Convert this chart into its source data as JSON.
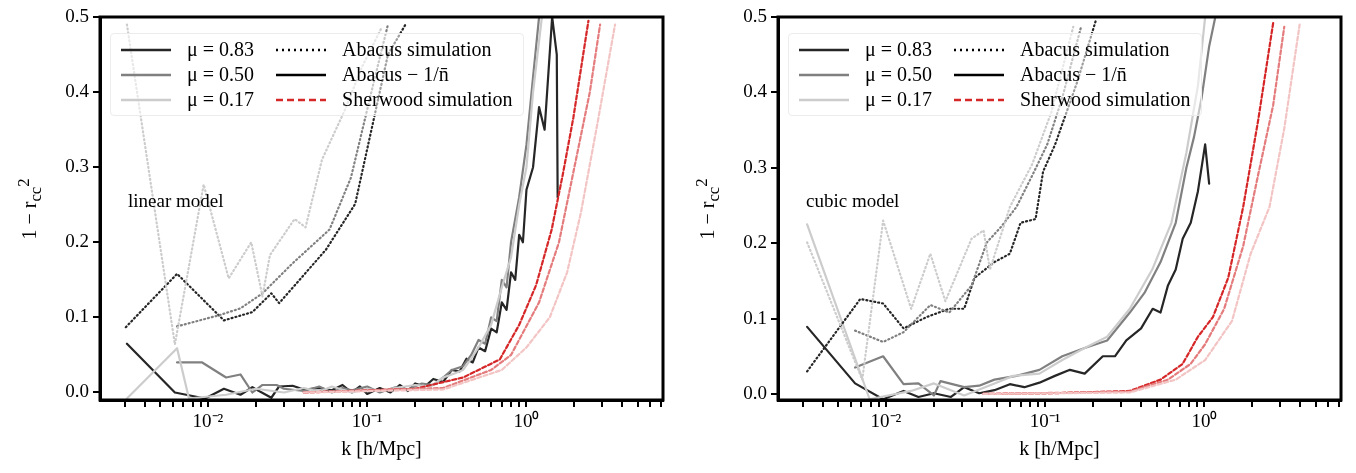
{
  "chart_data": [
    {
      "type": "line",
      "xlabel": "k [h/Mpc]",
      "ylabel": "1 − r$_{cc}$$^{2}$",
      "annotations": [
        "linear model"
      ],
      "log": "x",
      "grid": false,
      "legend": "top left",
      "xlim": [
        0.0021,
        7.2
      ],
      "ylim": [
        -0.01,
        0.5
      ],
      "xticks": [
        {
          "value": 0.003,
          "label": null
        },
        {
          "value": 0.004,
          "label": null
        },
        {
          "value": 0.005,
          "label": null
        },
        {
          "value": 0.006,
          "label": null
        },
        {
          "value": 0.007,
          "label": null
        },
        {
          "value": 0.008,
          "label": null
        },
        {
          "value": 0.009,
          "label": null
        },
        {
          "value": 0.01,
          "label": "10⁻²"
        },
        {
          "value": 0.02,
          "label": null
        },
        {
          "value": 0.03,
          "label": null
        },
        {
          "value": 0.04,
          "label": null
        },
        {
          "value": 0.05,
          "label": null
        },
        {
          "value": 0.06,
          "label": null
        },
        {
          "value": 0.07,
          "label": null
        },
        {
          "value": 0.08,
          "label": null
        },
        {
          "value": 0.09,
          "label": null
        },
        {
          "value": 0.1,
          "label": "10⁻¹"
        },
        {
          "value": 0.2,
          "label": null
        },
        {
          "value": 0.3,
          "label": null
        },
        {
          "value": 0.4,
          "label": null
        },
        {
          "value": 0.5,
          "label": null
        },
        {
          "value": 0.6,
          "label": null
        },
        {
          "value": 0.7,
          "label": null
        },
        {
          "value": 0.8,
          "label": null
        },
        {
          "value": 0.9,
          "label": null
        },
        {
          "value": 1,
          "label": "10⁰"
        },
        {
          "value": 2,
          "label": null
        },
        {
          "value": 3,
          "label": null
        },
        {
          "value": 4,
          "label": null
        },
        {
          "value": 5,
          "label": null
        },
        {
          "value": 6,
          "label": null
        },
        {
          "value": 7,
          "label": null
        }
      ],
      "yticks": [
        {
          "value": 0,
          "label": "0.0"
        },
        {
          "value": 0.1,
          "label": "0.1"
        },
        {
          "value": 0.2,
          "label": "0.2"
        },
        {
          "value": 0.3,
          "label": "0.3"
        },
        {
          "value": 0.4,
          "label": "0.4"
        },
        {
          "value": 0.5,
          "label": "0.5"
        }
      ],
      "series": [
        {
          "color": "#cccccc",
          "line_style": "dotted",
          "x": [
            0.0031,
            0.0062,
            0.0094,
            0.0135,
            0.0187,
            0.022,
            0.0245,
            0.035,
            0.041,
            0.052,
            0.072,
            0.093,
            0.122
          ],
          "values": [
            0.49,
            0.064,
            0.277,
            0.152,
            0.2,
            0.128,
            0.183,
            0.231,
            0.22,
            0.31,
            0.375,
            0.434,
            0.484
          ]
        },
        {
          "color": "#808080",
          "line_style": "dotted",
          "x": [
            0.0064,
            0.0118,
            0.016,
            0.022,
            0.034,
            0.058,
            0.079,
            0.109,
            0.135
          ],
          "values": [
            0.088,
            0.103,
            0.112,
            0.132,
            0.172,
            0.217,
            0.286,
            0.41,
            0.49
          ]
        },
        {
          "color": "#262626",
          "line_style": "dotted",
          "x": [
            0.00305,
            0.0064,
            0.0126,
            0.019,
            0.025,
            0.028,
            0.055,
            0.084,
            0.099,
            0.135,
            0.174
          ],
          "values": [
            0.087,
            0.158,
            0.096,
            0.107,
            0.132,
            0.119,
            0.19,
            0.251,
            0.32,
            0.45,
            0.49
          ]
        },
        {
          "color": "#f3c4c4",
          "line_style": "dashed",
          "x": [
            0.04,
            0.3,
            0.7,
            1.0,
            1.4,
            1.8,
            2.2,
            2.8,
            3.6
          ],
          "values": [
            0,
            0.004,
            0.03,
            0.06,
            0.1,
            0.16,
            0.24,
            0.36,
            0.49
          ]
        },
        {
          "color": "#e47c7d",
          "line_style": "dashed",
          "x": [
            0.04,
            0.3,
            0.6,
            0.8,
            1.2,
            1.6,
            2.0,
            2.5,
            2.9
          ],
          "values": [
            0,
            0.006,
            0.03,
            0.05,
            0.12,
            0.2,
            0.3,
            0.4,
            0.49
          ]
        },
        {
          "color": "#d62728",
          "line_style": "dashed",
          "x": [
            0.04,
            0.2,
            0.4,
            0.68,
            0.9,
            1.15,
            1.44,
            1.69,
            1.97,
            2.45
          ],
          "values": [
            0,
            0.005,
            0.02,
            0.044,
            0.09,
            0.143,
            0.217,
            0.29,
            0.366,
            0.495
          ]
        },
        {
          "color": "#cccccc",
          "line_style": "solid",
          "x": [
            0.0031,
            0.0064,
            0.0076,
            0.013,
            0.02,
            0.03,
            0.04,
            0.05,
            0.06,
            0.08,
            0.1,
            0.12,
            0.15,
            0.2,
            0.25,
            0.3,
            0.35,
            0.4,
            0.45,
            0.5,
            0.6,
            0.7,
            0.8,
            0.9,
            1.0,
            1.1,
            1.25
          ],
          "values": [
            -0.008,
            0.059,
            -0.008,
            -0.003,
            0.005,
            0.0,
            0.006,
            0.001,
            0.008,
            0.0,
            0.005,
            0.002,
            0.006,
            0.01,
            0.008,
            0.02,
            0.025,
            0.03,
            0.045,
            0.06,
            0.09,
            0.14,
            0.18,
            0.25,
            0.3,
            0.4,
            0.5
          ]
        },
        {
          "color": "#808080",
          "line_style": "solid",
          "x": [
            0.0064,
            0.0092,
            0.013,
            0.016,
            0.019,
            0.022,
            0.027,
            0.03,
            0.04,
            0.05,
            0.06,
            0.07,
            0.08,
            0.1,
            0.12,
            0.15,
            0.18,
            0.22,
            0.26,
            0.3,
            0.34,
            0.4,
            0.45,
            0.5,
            0.55,
            0.6,
            0.65,
            0.7,
            0.75,
            0.8,
            0.9,
            1.0,
            1.1,
            1.2
          ],
          "values": [
            0.04,
            0.04,
            0.02,
            0.024,
            0.0,
            0.01,
            0.01,
            0.005,
            0.002,
            0.008,
            0.0,
            0.006,
            0.003,
            0.008,
            0.0,
            0.007,
            0.004,
            0.012,
            0.01,
            0.02,
            0.03,
            0.035,
            0.05,
            0.07,
            0.065,
            0.1,
            0.095,
            0.15,
            0.14,
            0.2,
            0.26,
            0.33,
            0.42,
            0.5
          ]
        },
        {
          "color": "#262626",
          "line_style": "solid",
          "x": [
            0.0031,
            0.0062,
            0.0096,
            0.0126,
            0.016,
            0.019,
            0.025,
            0.028,
            0.034,
            0.04,
            0.05,
            0.06,
            0.07,
            0.08,
            0.09,
            0.1,
            0.12,
            0.14,
            0.16,
            0.18,
            0.2,
            0.23,
            0.26,
            0.3,
            0.34,
            0.38,
            0.42,
            0.46,
            0.5,
            0.55,
            0.6,
            0.65,
            0.7,
            0.75,
            0.8,
            0.85,
            0.9,
            0.95,
            1.0,
            1.1,
            1.2,
            1.3,
            1.45,
            1.55,
            1.57
          ],
          "values": [
            0.065,
            0.0,
            -0.008,
            0.005,
            -0.003,
            0.007,
            -0.007,
            0.008,
            0.009,
            0.004,
            0.006,
            0.003,
            0.01,
            0.0,
            0.008,
            -0.002,
            0.006,
            0.0,
            0.01,
            0.002,
            0.012,
            0.008,
            0.018,
            0.014,
            0.03,
            0.028,
            0.045,
            0.04,
            0.06,
            0.055,
            0.085,
            0.08,
            0.12,
            0.11,
            0.16,
            0.15,
            0.21,
            0.2,
            0.27,
            0.3,
            0.38,
            0.35,
            0.5,
            0.45,
            0.26
          ]
        },
        {
          "name": "μ = 0.83",
          "color": "#262626",
          "line_style": "solid"
        },
        {
          "name": "μ = 0.50",
          "color": "#808080",
          "line_style": "solid"
        },
        {
          "name": "μ = 0.17",
          "color": "#cccccc",
          "line_style": "solid"
        },
        {
          "name": "Abacus simulation",
          "color": "#000000",
          "line_style": "dotted"
        },
        {
          "name": "Abacus − 1/n̄",
          "color": "#000000",
          "line_style": "solid"
        },
        {
          "name": "Sherwood simulation",
          "color": "#d62728",
          "line_style": "dashed"
        }
      ]
    },
    {
      "type": "line",
      "xlabel": "k [h/Mpc]",
      "ylabel": "1 − r$_{cc}$$^{2}$",
      "annotations": [
        "cubic model"
      ],
      "log": "x",
      "grid": false,
      "legend": "top left",
      "xlim": [
        0.0021,
        7.2
      ],
      "ylim": [
        -0.008,
        0.5
      ],
      "xticks": [
        {
          "value": 0.003,
          "label": null
        },
        {
          "value": 0.004,
          "label": null
        },
        {
          "value": 0.005,
          "label": null
        },
        {
          "value": 0.006,
          "label": null
        },
        {
          "value": 0.007,
          "label": null
        },
        {
          "value": 0.008,
          "label": null
        },
        {
          "value": 0.009,
          "label": null
        },
        {
          "value": 0.01,
          "label": "10⁻²"
        },
        {
          "value": 0.02,
          "label": null
        },
        {
          "value": 0.03,
          "label": null
        },
        {
          "value": 0.04,
          "label": null
        },
        {
          "value": 0.05,
          "label": null
        },
        {
          "value": 0.06,
          "label": null
        },
        {
          "value": 0.07,
          "label": null
        },
        {
          "value": 0.08,
          "label": null
        },
        {
          "value": 0.09,
          "label": null
        },
        {
          "value": 0.1,
          "label": "10⁻¹"
        },
        {
          "value": 0.2,
          "label": null
        },
        {
          "value": 0.3,
          "label": null
        },
        {
          "value": 0.4,
          "label": null
        },
        {
          "value": 0.5,
          "label": null
        },
        {
          "value": 0.6,
          "label": null
        },
        {
          "value": 0.7,
          "label": null
        },
        {
          "value": 0.8,
          "label": null
        },
        {
          "value": 0.9,
          "label": null
        },
        {
          "value": 1,
          "label": "10⁰"
        },
        {
          "value": 2,
          "label": null
        },
        {
          "value": 3,
          "label": null
        },
        {
          "value": 4,
          "label": null
        },
        {
          "value": 5,
          "label": null
        },
        {
          "value": 6,
          "label": null
        },
        {
          "value": 7,
          "label": null
        }
      ],
      "yticks": [
        {
          "value": 0,
          "label": "0.0"
        },
        {
          "value": 0.1,
          "label": "0.1"
        },
        {
          "value": 0.2,
          "label": "0.2"
        },
        {
          "value": 0.3,
          "label": "0.3"
        },
        {
          "value": 0.4,
          "label": "0.4"
        },
        {
          "value": 0.5,
          "label": "0.5"
        }
      ],
      "series": [
        {
          "color": "#cccccc",
          "line_style": "dotted",
          "x": [
            0.0032,
            0.0071,
            0.0096,
            0.0144,
            0.019,
            0.0236,
            0.0345,
            0.041,
            0.045,
            0.06,
            0.083,
            0.109,
            0.15
          ],
          "values": [
            0.201,
            0.019,
            0.23,
            0.113,
            0.186,
            0.123,
            0.206,
            0.217,
            0.165,
            0.248,
            0.305,
            0.373,
            0.487
          ]
        },
        {
          "color": "#808080",
          "line_style": "dotted",
          "x": [
            0.0064,
            0.0096,
            0.0129,
            0.019,
            0.025,
            0.0345,
            0.043,
            0.053,
            0.066,
            0.083,
            0.103,
            0.128,
            0.168
          ],
          "values": [
            0.084,
            0.069,
            0.082,
            0.118,
            0.108,
            0.144,
            0.201,
            0.222,
            0.248,
            0.29,
            0.331,
            0.393,
            0.487
          ]
        },
        {
          "color": "#262626",
          "line_style": "dotted",
          "x": [
            0.0032,
            0.0069,
            0.0096,
            0.0129,
            0.018,
            0.025,
            0.031,
            0.036,
            0.048,
            0.06,
            0.07,
            0.087,
            0.097,
            0.115,
            0.159,
            0.209
          ],
          "values": [
            0.03,
            0.126,
            0.12,
            0.087,
            0.102,
            0.113,
            0.113,
            0.154,
            0.175,
            0.186,
            0.227,
            0.232,
            0.295,
            0.33,
            0.414,
            0.497
          ]
        },
        {
          "color": "#f3c4c4",
          "line_style": "dashed",
          "x": [
            0.041,
            0.34,
            0.66,
            1.01,
            1.49,
            1.95,
            2.56,
            3.17,
            3.96
          ],
          "values": [
            0,
            0.002,
            0.019,
            0.045,
            0.097,
            0.186,
            0.248,
            0.352,
            0.49
          ]
        },
        {
          "color": "#e47c7d",
          "line_style": "dashed",
          "x": [
            0.041,
            0.34,
            0.59,
            0.82,
            1.01,
            1.33,
            1.75,
            2.17,
            2.7,
            3.17
          ],
          "values": [
            0,
            0.003,
            0.019,
            0.04,
            0.066,
            0.113,
            0.196,
            0.29,
            0.383,
            0.487
          ]
        },
        {
          "color": "#d62728",
          "line_style": "dashed",
          "x": [
            0.041,
            0.115,
            0.34,
            0.53,
            0.73,
            0.91,
            1.13,
            1.41,
            1.75,
            2.17,
            2.7
          ],
          "values": [
            0,
            0.001,
            0.004,
            0.019,
            0.04,
            0.076,
            0.102,
            0.154,
            0.248,
            0.362,
            0.492
          ]
        },
        {
          "color": "#cccccc",
          "line_style": "solid",
          "x": [
            0.0032,
            0.0079,
            0.0144,
            0.02,
            0.031,
            0.048,
            0.063,
            0.092,
            0.128,
            0.177,
            0.245,
            0.34,
            0.47,
            0.62,
            0.77,
            0.91,
            1.01
          ],
          "values": [
            0.225,
            -0.007,
            0.004,
            0.014,
            -0.002,
            0.014,
            0.024,
            0.027,
            0.045,
            0.061,
            0.076,
            0.113,
            0.165,
            0.227,
            0.32,
            0.409,
            0.5
          ]
        },
        {
          "color": "#808080",
          "line_style": "solid",
          "x": [
            0.0064,
            0.0096,
            0.0129,
            0.016,
            0.02,
            0.022,
            0.031,
            0.0385,
            0.048,
            0.066,
            0.092,
            0.128,
            0.177,
            0.245,
            0.34,
            0.42,
            0.53,
            0.66,
            0.77,
            0.86,
            0.96,
            1.07,
            1.17
          ],
          "values": [
            0.035,
            0.05,
            0.013,
            0.014,
            -0.002,
            0.017,
            0.009,
            0.011,
            0.019,
            0.024,
            0.032,
            0.05,
            0.061,
            0.071,
            0.108,
            0.134,
            0.175,
            0.227,
            0.3,
            0.341,
            0.393,
            0.461,
            0.5
          ]
        },
        {
          "color": "#262626",
          "line_style": "solid",
          "x": [
            0.0032,
            0.0064,
            0.0096,
            0.0129,
            0.016,
            0.02,
            0.0256,
            0.031,
            0.0385,
            0.048,
            0.06,
            0.074,
            0.092,
            0.115,
            0.143,
            0.177,
            0.23,
            0.274,
            0.323,
            0.4,
            0.473,
            0.53,
            0.59,
            0.66,
            0.73,
            0.82,
            0.91,
            1.01,
            1.07
          ],
          "values": [
            0.089,
            0.014,
            -0.007,
            0.004,
            -0.004,
            0.001,
            -0.004,
            0.009,
            0.001,
            0.005,
            0.013,
            0.009,
            0.015,
            0.024,
            0.032,
            0.027,
            0.05,
            0.05,
            0.071,
            0.087,
            0.113,
            0.108,
            0.144,
            0.165,
            0.206,
            0.227,
            0.269,
            0.331,
            0.279
          ]
        },
        {
          "name": "μ = 0.83",
          "color": "#262626",
          "line_style": "solid"
        },
        {
          "name": "μ = 0.50",
          "color": "#808080",
          "line_style": "solid"
        },
        {
          "name": "μ = 0.17",
          "color": "#cccccc",
          "line_style": "solid"
        },
        {
          "name": "Abacus simulation",
          "color": "#000000",
          "line_style": "dotted"
        },
        {
          "name": "Abacus − 1/n̄",
          "color": "#000000",
          "line_style": "solid"
        },
        {
          "name": "Sherwood simulation",
          "color": "#d62728",
          "line_style": "dashed"
        }
      ]
    }
  ]
}
